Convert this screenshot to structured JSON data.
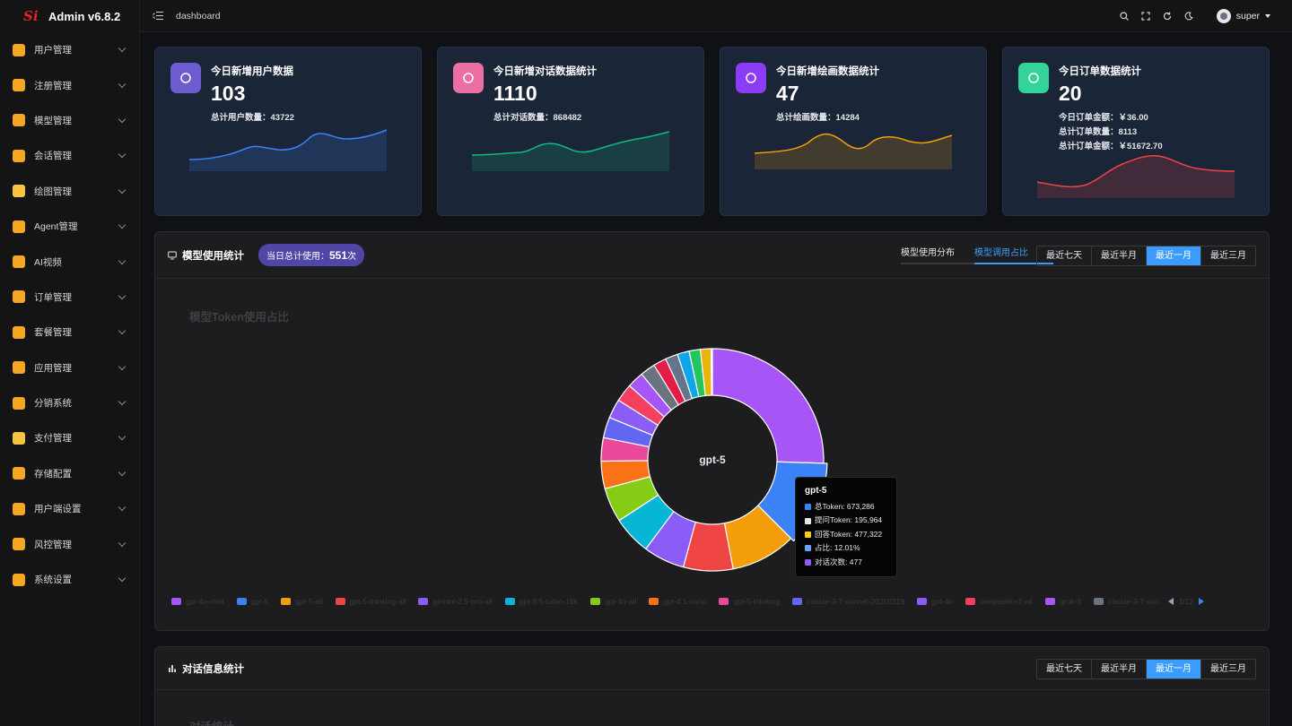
{
  "app": {
    "title": "Admin v6.8.2",
    "logo_text": "Si"
  },
  "sidebar": {
    "items": [
      {
        "label": "用户管理",
        "icon": "user-manage-icon",
        "color": "#f5a623"
      },
      {
        "label": "注册管理",
        "icon": "register-icon",
        "color": "#f5a623"
      },
      {
        "label": "模型管理",
        "icon": "model-icon",
        "color": "#f5a623"
      },
      {
        "label": "会话管理",
        "icon": "chat-icon",
        "color": "#f5a623"
      },
      {
        "label": "绘图管理",
        "icon": "palette-icon",
        "color": "#f5c542"
      },
      {
        "label": "Agent管理",
        "icon": "agent-icon",
        "color": "#f5a623"
      },
      {
        "label": "AI视频",
        "icon": "video-icon",
        "color": "#f5a623"
      },
      {
        "label": "订单管理",
        "icon": "order-icon",
        "color": "#f5a623"
      },
      {
        "label": "套餐管理",
        "icon": "package-icon",
        "color": "#f5a623"
      },
      {
        "label": "应用管理",
        "icon": "apps-icon",
        "color": "#f5a623"
      },
      {
        "label": "分销系统",
        "icon": "distribution-icon",
        "color": "#f5a623"
      },
      {
        "label": "支付管理",
        "icon": "payment-icon",
        "color": "#f5c542"
      },
      {
        "label": "存储配置",
        "icon": "storage-icon",
        "color": "#f5a623"
      },
      {
        "label": "用户端设置",
        "icon": "client-settings-icon",
        "color": "#f5a623"
      },
      {
        "label": "风控管理",
        "icon": "shield-icon",
        "color": "#f5a623"
      },
      {
        "label": "系统设置",
        "icon": "gear-icon",
        "color": "#f5a623"
      }
    ]
  },
  "header": {
    "breadcrumb": "dashboard",
    "user": "super"
  },
  "cards": [
    {
      "title": "今日新增用户数据",
      "value": "103",
      "subs": [
        "总计用户数量：43722"
      ],
      "color": "#3b82f6",
      "icon_bg": "#6d5bd0"
    },
    {
      "title": "今日新增对话数据统计",
      "value": "1110",
      "subs": [
        "总计对话数量：868482"
      ],
      "color": "#10b981",
      "icon_bg": "#ec6fa4"
    },
    {
      "title": "今日新增绘画数据统计",
      "value": "47",
      "subs": [
        "总计绘画数量：14284"
      ],
      "color": "#f59e0b",
      "icon_bg": "#8b3cf6"
    },
    {
      "title": "今日订单数据统计",
      "value": "20",
      "subs": [
        "今日订单金额：￥36.00",
        "总计订单数量：8113",
        "总计订单金额：￥51672.70"
      ],
      "color": "#ef4444",
      "icon_bg": "#34d399"
    }
  ],
  "model_panel": {
    "title": "模型使用统计",
    "pill_prefix": "当日总计使用：",
    "pill_value": "551",
    "pill_suffix": "次",
    "tabs": [
      "模型使用分布",
      "模型调用占比"
    ],
    "ranges": [
      "最近七天",
      "最近半月",
      "最近一月",
      "最近三月"
    ],
    "chart_title": "模型Token使用占比",
    "center_label": "gpt-5",
    "legend_page": "1/12"
  },
  "tooltip": {
    "title": "gpt-5",
    "rows": [
      {
        "text": "总Token: 673,286",
        "color": "#3b82f6"
      },
      {
        "text": "提问Token: 195,964",
        "color": "#e5e7eb"
      },
      {
        "text": "回答Token: 477,322",
        "color": "#facc15"
      },
      {
        "text": "占比: 12.01%",
        "color": "#60a5fa"
      },
      {
        "text": "对话次数: 477",
        "color": "#8b5cf6"
      }
    ]
  },
  "chart_data": {
    "type": "pie",
    "title": "模型Token使用占比",
    "categories": [
      "gpt-4o-mini",
      "gpt-5",
      "gpt-5-all",
      "gpt-5-thinking-all",
      "gemini-2.5-pro-all",
      "gpt-3.5-turbo-16k",
      "gpt-4o-all",
      "gpt-4.1-nano",
      "gpt-5-thinking",
      "claude-3-7-sonnet-20250219",
      "gpt-4o",
      "deepseek-r1-all",
      "grok-3",
      "claude-3-7-son"
    ],
    "colors": [
      "#a855f7",
      "#3b82f6",
      "#f59e0b",
      "#ef4444",
      "#8b5cf6",
      "#06b6d4",
      "#84cc16",
      "#f97316",
      "#ec4899",
      "#6366f1",
      "#8b5cf6",
      "#f43f5e",
      "#a855f7",
      "#6b7280"
    ],
    "values": [
      25.5,
      12.01,
      9.5,
      7.2,
      6.0,
      5.6,
      5.0,
      4.0,
      3.4,
      3.0,
      2.8,
      2.6,
      2.4,
      2.2
    ],
    "legend": "bottom"
  },
  "dialog_panel": {
    "title": "对话信息统计",
    "ranges": [
      "最近七天",
      "最近半月",
      "最近一月",
      "最近三月"
    ],
    "chart_title": "对话统计"
  }
}
